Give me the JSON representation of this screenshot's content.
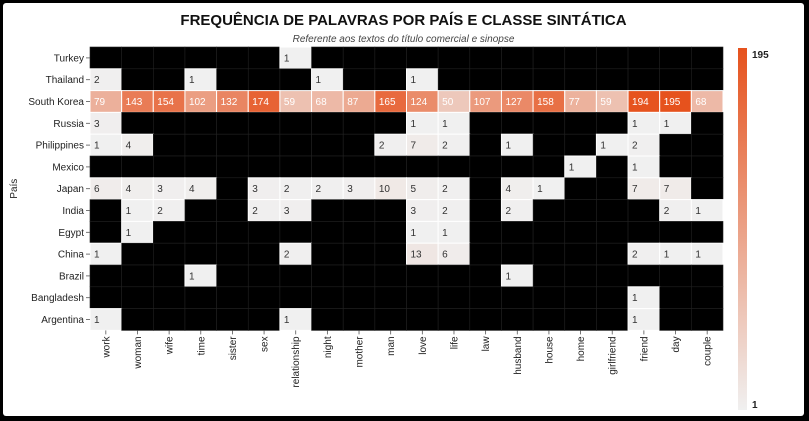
{
  "chart_data": {
    "type": "heatmap",
    "title": "FREQUÊNCIA DE PALAVRAS POR PAÍS E CLASSE SINTÁTICA",
    "subtitle": "Referente aos textos do título comercial e sinopse",
    "ylabel": "País",
    "xlabel": "",
    "x": [
      "work",
      "woman",
      "wife",
      "time",
      "sister",
      "sex",
      "relationship",
      "night",
      "mother",
      "man",
      "love",
      "life",
      "law",
      "husband",
      "house",
      "home",
      "girlfriend",
      "friend",
      "day",
      "couple"
    ],
    "y": [
      "Turkey",
      "Thailand",
      "South Korea",
      "Russia",
      "Philippines",
      "Mexico",
      "Japan",
      "India",
      "Egypt",
      "China",
      "Brazil",
      "Bangladesh",
      "Argentina"
    ],
    "values": [
      [
        null,
        null,
        null,
        null,
        null,
        null,
        1,
        null,
        null,
        null,
        null,
        null,
        null,
        null,
        null,
        null,
        null,
        null,
        null,
        null
      ],
      [
        2,
        null,
        null,
        1,
        null,
        null,
        null,
        1,
        null,
        null,
        1,
        null,
        null,
        null,
        null,
        null,
        null,
        null,
        null,
        null
      ],
      [
        79,
        143,
        154,
        102,
        132,
        174,
        59,
        68,
        87,
        165,
        124,
        50,
        107,
        127,
        158,
        77,
        59,
        194,
        195,
        68
      ],
      [
        3,
        null,
        null,
        null,
        null,
        null,
        null,
        null,
        null,
        null,
        1,
        1,
        null,
        null,
        null,
        null,
        null,
        1,
        1,
        null
      ],
      [
        1,
        4,
        null,
        null,
        null,
        null,
        null,
        null,
        null,
        2,
        7,
        2,
        null,
        1,
        null,
        null,
        1,
        2,
        null,
        null
      ],
      [
        null,
        null,
        null,
        null,
        null,
        null,
        null,
        null,
        null,
        null,
        null,
        null,
        null,
        null,
        null,
        1,
        null,
        1,
        null,
        null
      ],
      [
        6,
        4,
        3,
        4,
        null,
        3,
        2,
        2,
        3,
        10,
        5,
        2,
        null,
        4,
        1,
        null,
        null,
        7,
        7,
        null
      ],
      [
        null,
        1,
        2,
        null,
        null,
        2,
        3,
        null,
        null,
        null,
        3,
        2,
        null,
        2,
        null,
        null,
        null,
        null,
        2,
        1
      ],
      [
        null,
        1,
        null,
        null,
        null,
        null,
        null,
        null,
        null,
        null,
        1,
        1,
        null,
        null,
        null,
        null,
        null,
        null,
        null,
        null
      ],
      [
        1,
        null,
        null,
        null,
        null,
        null,
        2,
        null,
        null,
        null,
        13,
        6,
        null,
        null,
        null,
        null,
        null,
        2,
        1,
        1
      ],
      [
        null,
        null,
        null,
        1,
        null,
        null,
        null,
        null,
        null,
        null,
        null,
        null,
        null,
        1,
        null,
        null,
        null,
        null,
        null,
        null
      ],
      [
        null,
        null,
        null,
        null,
        null,
        null,
        null,
        null,
        null,
        null,
        null,
        null,
        null,
        null,
        null,
        null,
        null,
        1,
        null,
        null
      ],
      [
        1,
        null,
        null,
        null,
        null,
        null,
        1,
        null,
        null,
        null,
        null,
        null,
        null,
        null,
        null,
        null,
        null,
        1,
        null,
        null
      ]
    ],
    "colorscale": {
      "min": 1,
      "max": 195,
      "min_color": "#f0f0f0",
      "max_color": "#e6521d",
      "missing_color": "#000000"
    },
    "colorbar_labels": [
      "195",
      "1"
    ]
  }
}
